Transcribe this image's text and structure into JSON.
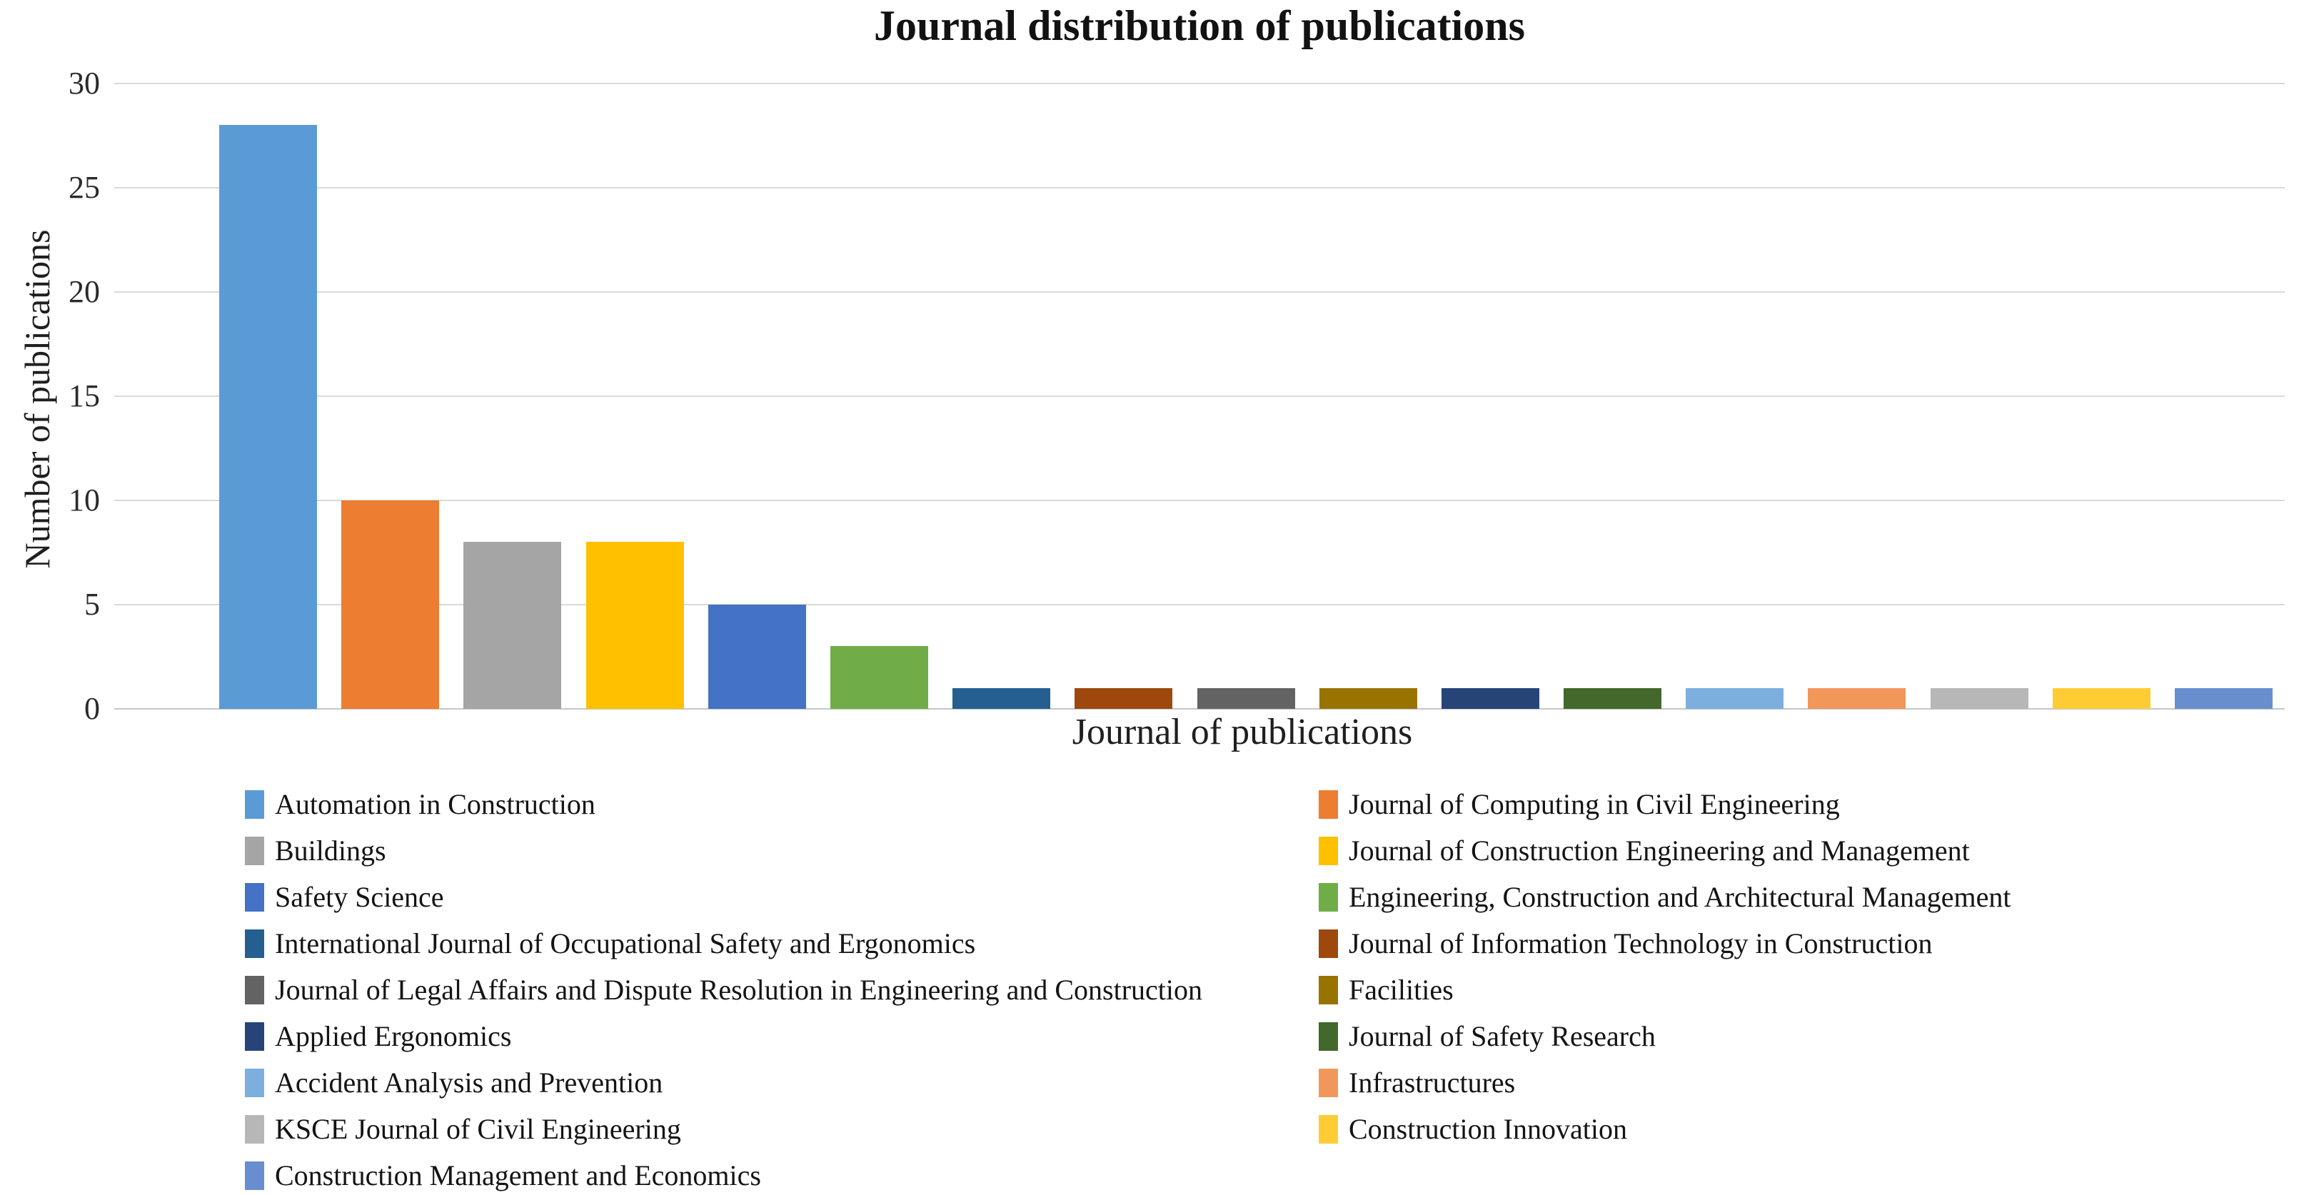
{
  "chart_data": {
    "type": "bar",
    "title": "Journal distribution of publications",
    "xlabel": "Journal of publications",
    "ylabel": "Number of publications",
    "ylim": [
      0,
      30
    ],
    "yticks": [
      0,
      5,
      10,
      15,
      20,
      25,
      30
    ],
    "grid": true,
    "legend_position": "bottom, two columns, row-major order",
    "categories": [
      "Automation in Construction",
      "Journal of Computing in Civil Engineering",
      "Buildings",
      "Journal of Construction Engineering and Management",
      "Safety Science",
      "Engineering, Construction and Architectural Management",
      "International Journal of Occupational Safety and Ergonomics",
      "Journal of Information Technology in Construction",
      "Journal of Legal Affairs and Dispute Resolution in Engineering and Construction",
      "Facilities",
      "Applied Ergonomics",
      "Journal of Safety Research",
      "Accident Analysis and Prevention",
      "Infrastructures",
      "KSCE Journal of Civil Engineering",
      "Construction Innovation",
      "Construction Management and Economics"
    ],
    "values": [
      28,
      10,
      8,
      8,
      5,
      3,
      1,
      1,
      1,
      1,
      1,
      1,
      1,
      1,
      1,
      1,
      1
    ],
    "series": [
      {
        "name": "Automation in Construction",
        "value": 28,
        "color": "#5B9BD5"
      },
      {
        "name": "Journal of Computing in Civil Engineering",
        "value": 10,
        "color": "#ED7D31"
      },
      {
        "name": "Buildings",
        "value": 8,
        "color": "#A5A5A5"
      },
      {
        "name": "Journal of Construction Engineering and Management",
        "value": 8,
        "color": "#FFC000"
      },
      {
        "name": "Safety Science",
        "value": 5,
        "color": "#4472C4"
      },
      {
        "name": "Engineering, Construction and Architectural Management",
        "value": 3,
        "color": "#70AD47"
      },
      {
        "name": "International Journal of Occupational Safety and Ergonomics",
        "value": 1,
        "color": "#255E91"
      },
      {
        "name": "Journal of Information Technology in Construction",
        "value": 1,
        "color": "#9E480E"
      },
      {
        "name": "Journal of Legal Affairs and Dispute Resolution in Engineering and Construction",
        "value": 1,
        "color": "#636363"
      },
      {
        "name": "Facilities",
        "value": 1,
        "color": "#997300"
      },
      {
        "name": "Applied Ergonomics",
        "value": 1,
        "color": "#264478"
      },
      {
        "name": "Journal of Safety Research",
        "value": 1,
        "color": "#43682B"
      },
      {
        "name": "Accident Analysis and Prevention",
        "value": 1,
        "color": "#7CAFDD"
      },
      {
        "name": "Infrastructures",
        "value": 1,
        "color": "#F1975A"
      },
      {
        "name": "KSCE Journal of Civil Engineering",
        "value": 1,
        "color": "#B7B7B7"
      },
      {
        "name": "Construction Innovation",
        "value": 1,
        "color": "#FFCD33"
      },
      {
        "name": "Construction Management and Economics",
        "value": 1,
        "color": "#698ED0"
      }
    ],
    "colors": {
      "gridline": "#d9d9d9",
      "axis_line": "#c6c6c6",
      "tick_text": "#2b2b2b",
      "title_text": "#121212"
    }
  }
}
